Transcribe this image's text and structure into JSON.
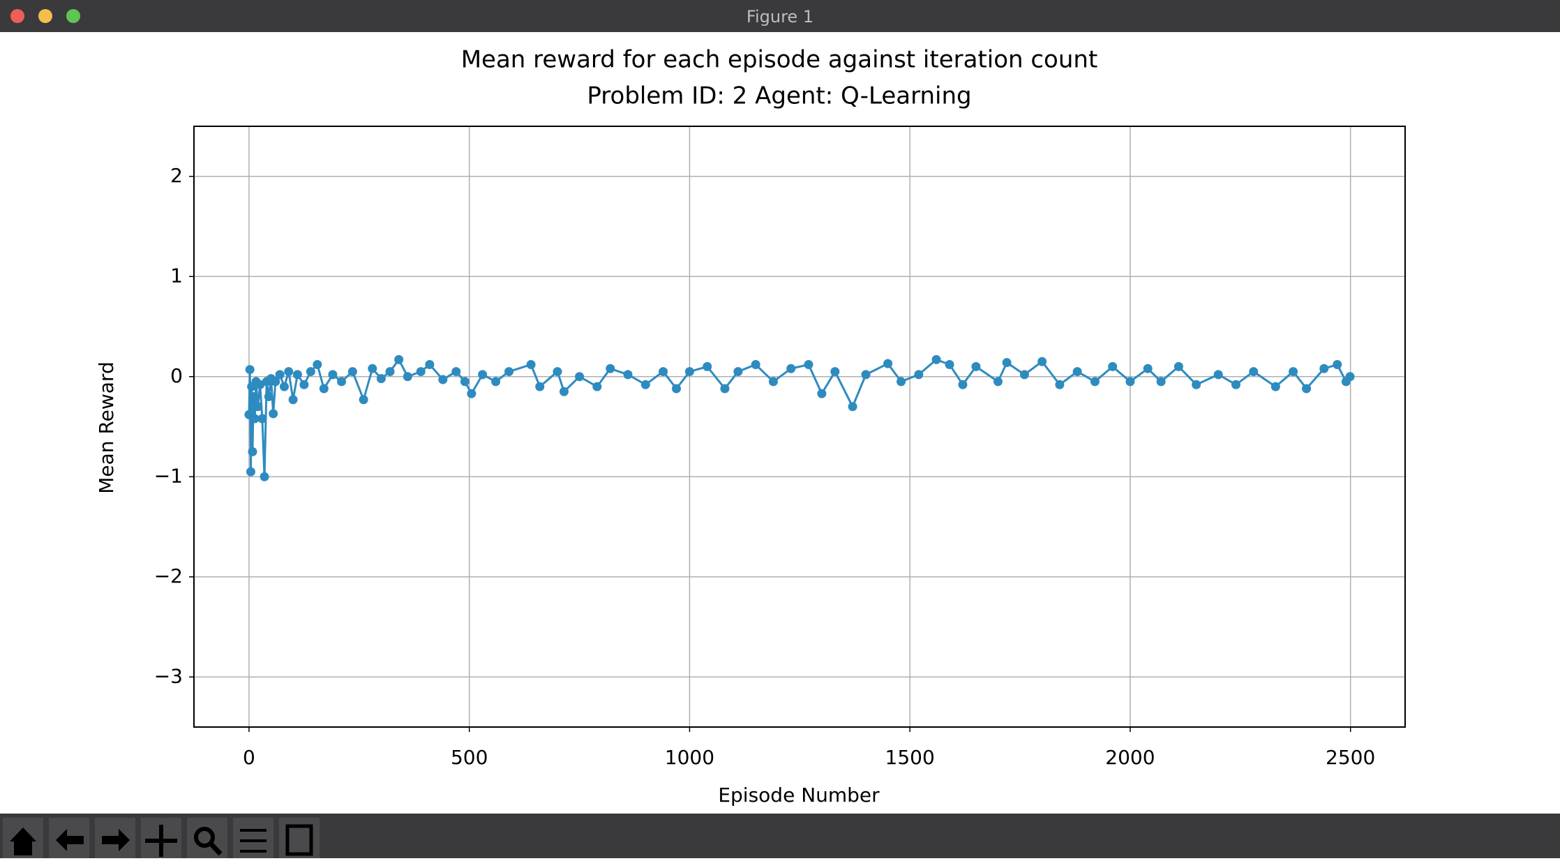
{
  "window": {
    "title": "Figure 1"
  },
  "chart_data": {
    "type": "line",
    "title": "Mean reward for each episode against iteration count",
    "subtitle": "Problem ID: 2 Agent: Q-Learning",
    "x_label": "Episode Number",
    "y_label": "Mean Reward",
    "xlim": [
      -125,
      2624
    ],
    "ylim": [
      -3.5,
      2.5
    ],
    "xticks": [
      0,
      500,
      1000,
      1500,
      2000,
      2500
    ],
    "yticks": [
      {
        "value": -3,
        "label": "−3"
      },
      {
        "value": -2,
        "label": "−2"
      },
      {
        "value": -1,
        "label": "−1"
      },
      0,
      1,
      2
    ],
    "grid": true,
    "series": [
      {
        "color": "#2e8bc0",
        "x": [
          0,
          2,
          4,
          6,
          8,
          10,
          13,
          16,
          20,
          25,
          30,
          35,
          40,
          45,
          50,
          55,
          60,
          70,
          80,
          90,
          100,
          110,
          125,
          140,
          155,
          170,
          190,
          210,
          235,
          260,
          280,
          300,
          320,
          340,
          360,
          390,
          410,
          440,
          470,
          490,
          505,
          530,
          560,
          590,
          640,
          660,
          700,
          715,
          750,
          790,
          820,
          860,
          900,
          940,
          970,
          1000,
          1040,
          1080,
          1110,
          1150,
          1190,
          1230,
          1270,
          1300,
          1330,
          1370,
          1400,
          1450,
          1480,
          1520,
          1560,
          1590,
          1620,
          1650,
          1700,
          1720,
          1760,
          1800,
          1840,
          1880,
          1920,
          1960,
          2000,
          2040,
          2070,
          2110,
          2150,
          2200,
          2240,
          2280,
          2330,
          2370,
          2400,
          2440,
          2470,
          2490,
          2499
        ],
        "values": [
          -0.38,
          0.07,
          -0.95,
          -0.1,
          -0.75,
          -0.2,
          -0.42,
          -0.05,
          -0.3,
          -0.08,
          -0.42,
          -1.0,
          -0.05,
          -0.2,
          -0.02,
          -0.37,
          -0.05,
          0.02,
          -0.1,
          0.05,
          -0.23,
          0.02,
          -0.08,
          0.05,
          0.12,
          -0.12,
          0.02,
          -0.05,
          0.05,
          -0.23,
          0.08,
          -0.02,
          0.05,
          0.17,
          0.0,
          0.05,
          0.12,
          -0.03,
          0.05,
          -0.05,
          -0.17,
          0.02,
          -0.05,
          0.05,
          0.12,
          -0.1,
          0.05,
          -0.15,
          0.0,
          -0.1,
          0.08,
          0.02,
          -0.08,
          0.05,
          -0.12,
          0.05,
          0.1,
          -0.12,
          0.05,
          0.12,
          -0.05,
          0.08,
          0.12,
          -0.17,
          0.05,
          -0.3,
          0.02,
          0.13,
          -0.05,
          0.02,
          0.17,
          0.12,
          -0.08,
          0.1,
          -0.05,
          0.14,
          0.02,
          0.15,
          -0.08,
          0.05,
          -0.05,
          0.1,
          -0.05,
          0.08,
          -0.05,
          0.1,
          -0.08,
          0.02,
          -0.08,
          0.05,
          -0.1,
          0.05,
          -0.12,
          0.08,
          0.12,
          -0.05,
          0.0
        ]
      }
    ]
  }
}
